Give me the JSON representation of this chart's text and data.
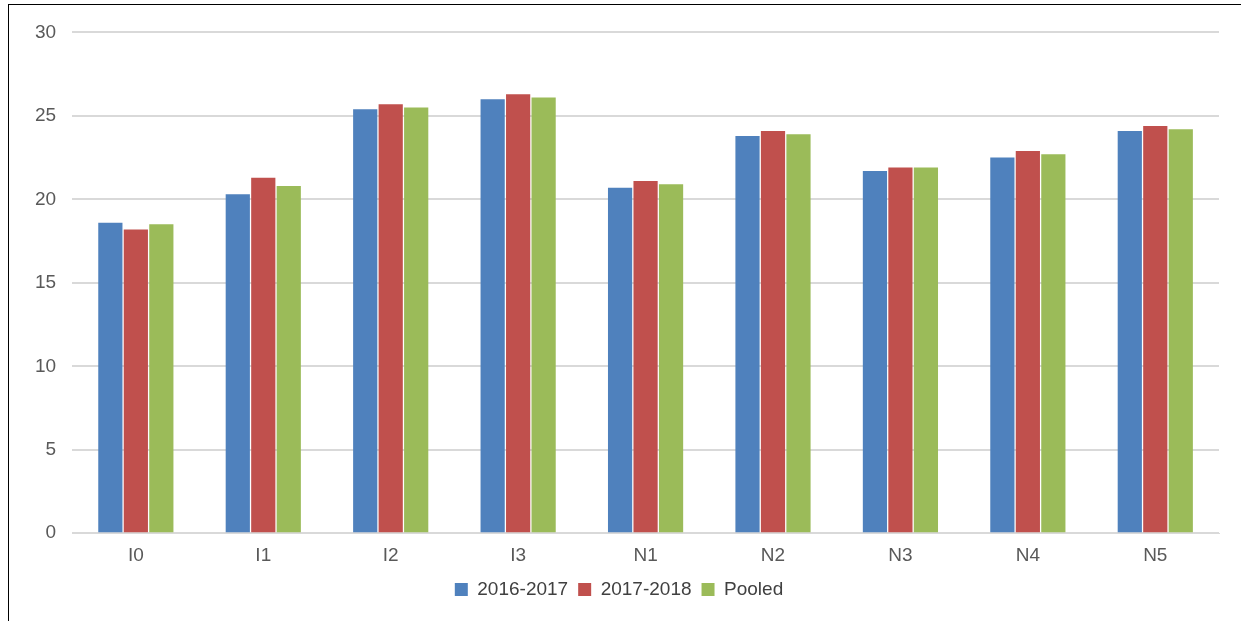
{
  "chart_data": {
    "type": "bar",
    "categories": [
      "I0",
      "I1",
      "I2",
      "I3",
      "N1",
      "N2",
      "N3",
      "N4",
      "N5"
    ],
    "series": [
      {
        "name": "2016-2017",
        "color": "#4f81bd",
        "values": [
          18.6,
          20.3,
          25.4,
          26.0,
          20.7,
          23.8,
          21.7,
          22.5,
          24.1
        ]
      },
      {
        "name": "2017-2018",
        "color": "#c0504d",
        "values": [
          18.2,
          21.3,
          25.7,
          26.3,
          21.1,
          24.1,
          21.9,
          22.9,
          24.4
        ]
      },
      {
        "name": "Pooled",
        "color": "#9bbb59",
        "values": [
          18.5,
          20.8,
          25.5,
          26.1,
          20.9,
          23.9,
          21.9,
          22.7,
          24.2
        ]
      }
    ],
    "ylim": [
      0,
      30
    ],
    "yticks": [
      0,
      5,
      10,
      15,
      20,
      25,
      30
    ],
    "grid": "y",
    "legend": "bottom"
  }
}
